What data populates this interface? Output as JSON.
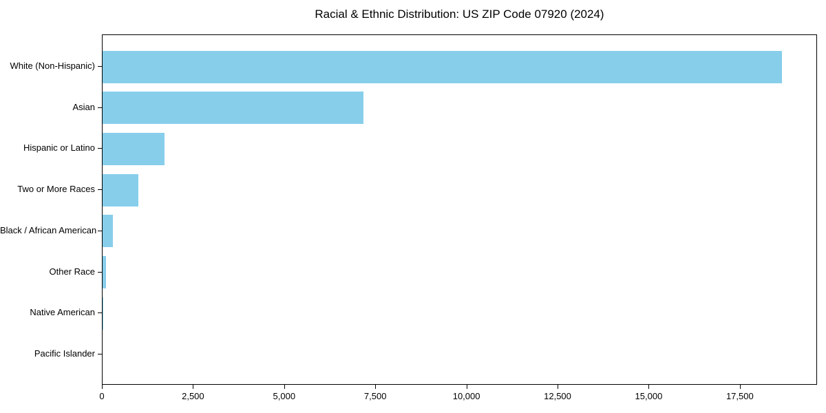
{
  "chart_data": {
    "type": "bar",
    "orientation": "horizontal",
    "title": "Racial & Ethnic Distribution: US ZIP Code 07920 (2024)",
    "categories": [
      "White (Non-Hispanic)",
      "Asian",
      "Hispanic or Latino",
      "Two or More Races",
      "Black / African American",
      "Other Race",
      "Native American",
      "Pacific Islander"
    ],
    "values": [
      18630,
      7150,
      1700,
      980,
      285,
      85,
      10,
      0
    ],
    "xlabel": "",
    "ylabel": "",
    "xlim": [
      0,
      19580
    ],
    "x_ticks": [
      0,
      2500,
      5000,
      7500,
      10000,
      12500,
      15000,
      17500
    ],
    "x_tick_labels": [
      "0",
      "2,500",
      "5,000",
      "7,500",
      "10,000",
      "12,500",
      "15,000",
      "17,500"
    ],
    "grid": false,
    "legend": null,
    "bar_color": "#87CEEB",
    "axis_color": "#000000",
    "text_color": "#000000",
    "background": "#FFFFFF"
  }
}
